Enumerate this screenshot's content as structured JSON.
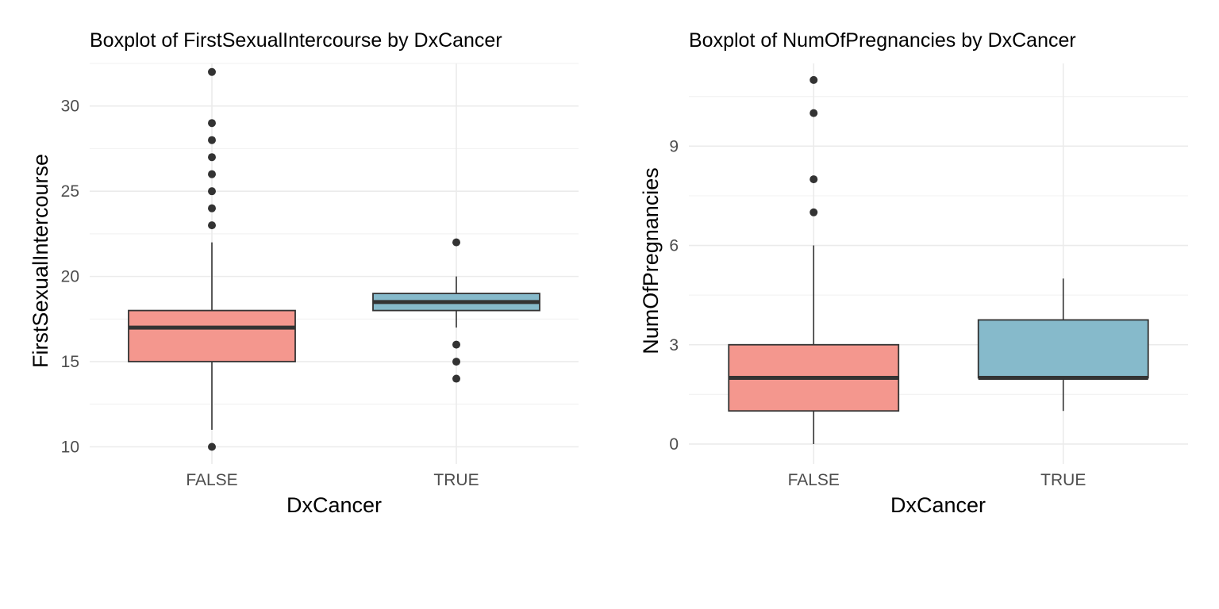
{
  "chart_data": [
    {
      "type": "boxplot",
      "title": "Boxplot of FirstSexualIntercourse by DxCancer",
      "xlabel": "DxCancer",
      "ylabel": "FirstSexualIntercourse",
      "categories": [
        "FALSE",
        "TRUE"
      ],
      "ylim": [
        9,
        32.5
      ],
      "yticks": [
        10,
        15,
        20,
        25,
        30
      ],
      "yminor": [
        12.5,
        17.5,
        22.5,
        27.5,
        32.5
      ],
      "grid": true,
      "legend": "none",
      "colors": [
        "#F4978E",
        "#86BACB"
      ],
      "boxes": [
        {
          "category": "FALSE",
          "whisker_low": 11,
          "q1": 15,
          "median": 17,
          "q3": 18,
          "whisker_high": 22,
          "outliers": [
            10,
            23,
            24,
            25,
            26,
            27,
            28,
            29,
            32
          ]
        },
        {
          "category": "TRUE",
          "whisker_low": 17,
          "q1": 18,
          "median": 18.5,
          "q3": 19,
          "whisker_high": 20,
          "outliers": [
            14,
            15,
            16,
            22
          ]
        }
      ]
    },
    {
      "type": "boxplot",
      "title": "Boxplot of NumOfPregnancies by DxCancer",
      "xlabel": "DxCancer",
      "ylabel": "NumOfPregnancies",
      "categories": [
        "FALSE",
        "TRUE"
      ],
      "ylim": [
        -0.6,
        11.5
      ],
      "yticks": [
        0,
        3,
        6,
        9
      ],
      "yminor": [
        1.5,
        4.5,
        7.5,
        10.5
      ],
      "grid": true,
      "legend": "none",
      "colors": [
        "#F4978E",
        "#86BACB"
      ],
      "boxes": [
        {
          "category": "FALSE",
          "whisker_low": 0,
          "q1": 1,
          "median": 2,
          "q3": 3,
          "whisker_high": 6,
          "outliers": [
            7,
            8,
            10,
            11
          ]
        },
        {
          "category": "TRUE",
          "whisker_low": 1,
          "q1": 2,
          "median": 2,
          "q3": 3.75,
          "whisker_high": 5,
          "outliers": []
        }
      ]
    }
  ]
}
